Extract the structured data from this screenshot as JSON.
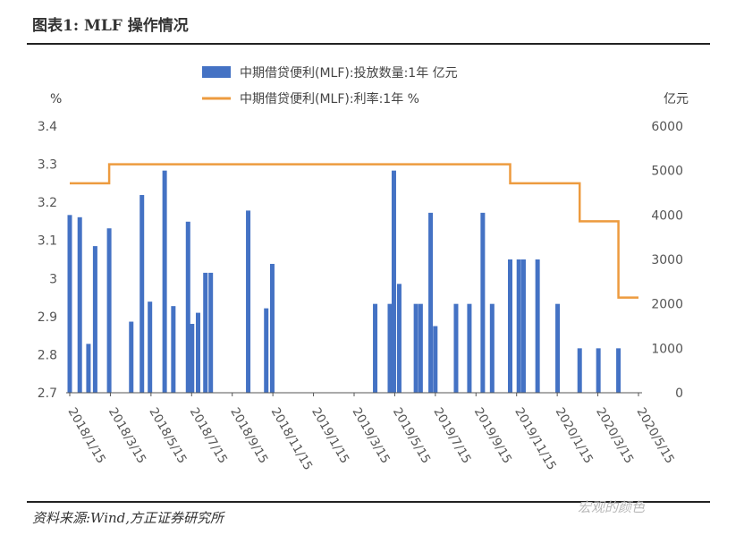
{
  "figure_title": "图表1:   MLF 操作情况",
  "source_note": "资料来源:Wind,方正证券研究所",
  "watermark": "宏观的颜色",
  "colors": {
    "bar": "#4472c4",
    "line": "#ed9b3f",
    "axis": "#555555"
  },
  "chart_data": {
    "type": "bar",
    "left_unit": "%",
    "right_unit": "亿元",
    "left_ylim": [
      2.7,
      3.4
    ],
    "left_ticks": [
      "3.4",
      "3.3",
      "3.2",
      "3.1",
      "3",
      "2.9",
      "2.8",
      "2.7"
    ],
    "right_ylim": [
      0,
      6000
    ],
    "right_ticks": [
      "6000",
      "5000",
      "4000",
      "3000",
      "2000",
      "1000",
      "0"
    ],
    "x_range": [
      "2018-01-15",
      "2020-05-15"
    ],
    "x_ticks": [
      "2018/1/15",
      "2018/3/15",
      "2018/5/15",
      "2018/7/15",
      "2018/9/15",
      "2018/11/15",
      "2019/1/15",
      "2019/3/15",
      "2019/5/15",
      "2019/7/15",
      "2019/9/15",
      "2019/11/15",
      "2020/1/15",
      "2020/3/15",
      "2020/5/15"
    ],
    "grid": false,
    "legend_position": "top",
    "series": [
      {
        "name": "中期借贷便利(MLF):投放数量:1年 亿元",
        "type": "bar",
        "axis": "right",
        "x": [
          "2018-01-15",
          "2018-01-30",
          "2018-02-12",
          "2018-02-22",
          "2018-03-15",
          "2018-04-17",
          "2018-05-03",
          "2018-05-15",
          "2018-06-06",
          "2018-06-19",
          "2018-07-11",
          "2018-07-17",
          "2018-07-26",
          "2018-08-06",
          "2018-08-14",
          "2018-10-09",
          "2018-11-05",
          "2018-11-14",
          "2019-04-17",
          "2019-05-09",
          "2019-05-15",
          "2019-05-23",
          "2019-06-17",
          "2019-06-24",
          "2019-07-09",
          "2019-07-16",
          "2019-08-16",
          "2019-09-05",
          "2019-09-25",
          "2019-10-09",
          "2019-11-05",
          "2019-11-18",
          "2019-11-25",
          "2019-12-16",
          "2020-01-15",
          "2020-02-17",
          "2020-03-16",
          "2020-04-15"
        ],
        "values": [
          4000,
          3950,
          1100,
          3300,
          3700,
          1600,
          4450,
          2050,
          5000,
          1950,
          3850,
          1550,
          1800,
          2700,
          2700,
          4100,
          1900,
          2900,
          2000,
          2000,
          5000,
          2450,
          2000,
          2000,
          4050,
          1500,
          2000,
          2000,
          4050,
          2000,
          3000,
          3000,
          3000,
          3000,
          2000,
          1000,
          1000,
          1000
        ]
      },
      {
        "name": "中期借贷便利(MLF):利率:1年 %",
        "type": "line",
        "axis": "left",
        "x": [
          "2018-01-15",
          "2018-03-15",
          "2019-10-15",
          "2019-11-05",
          "2020-02-17",
          "2020-04-15",
          "2020-05-15"
        ],
        "values": [
          3.25,
          3.3,
          3.3,
          3.25,
          3.15,
          2.95,
          2.95
        ]
      }
    ]
  }
}
